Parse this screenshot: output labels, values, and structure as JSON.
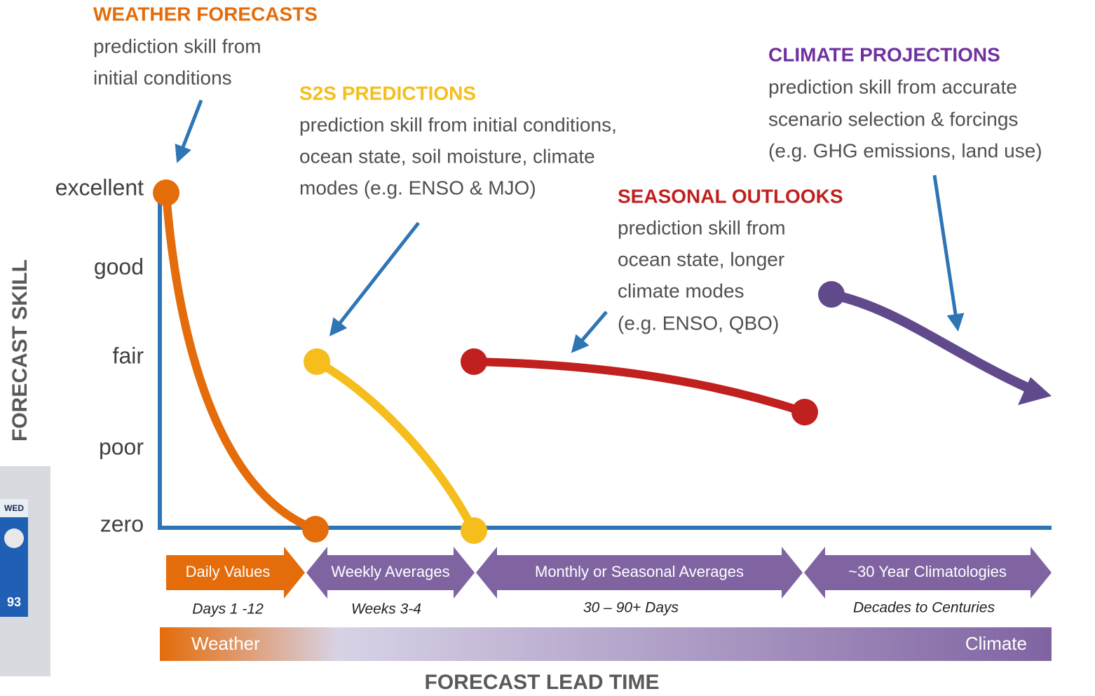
{
  "y_axis": {
    "title": "FORECAST SKILL",
    "levels": [
      "excellent",
      "good",
      "fair",
      "poor",
      "zero"
    ]
  },
  "x_axis": {
    "title": "FORECAST LEAD TIME"
  },
  "annotations": [
    {
      "title": "WEATHER FORECASTS",
      "lines": [
        "prediction skill from",
        "initial conditions"
      ]
    },
    {
      "title": "S2S PREDICTIONS",
      "lines": [
        "prediction skill from initial conditions,",
        "ocean state, soil moisture, climate",
        "modes (e.g. ENSO & MJO)"
      ]
    },
    {
      "title": "SEASONAL OUTLOOKS",
      "lines": [
        "prediction skill from",
        "ocean state, longer",
        "climate modes",
        "(e.g. ENSO, QBO)"
      ]
    },
    {
      "title": "CLIMATE PROJECTIONS",
      "lines": [
        "prediction skill from accurate",
        "scenario selection & forcings",
        "(e.g. GHG emissions, land use)"
      ]
    }
  ],
  "periods": [
    {
      "label": "Daily Values",
      "span": "Days 1 -12"
    },
    {
      "label": "Weekly Averages",
      "span": "Weeks 3-4"
    },
    {
      "label": "Monthly or Seasonal Averages",
      "span": "30 – 90+ Days"
    },
    {
      "label": "~30 Year Climatologies",
      "span": "Decades to Centuries"
    }
  ],
  "scale_bar": {
    "start": "Weather",
    "end": "Climate"
  },
  "thumbnail": {
    "day": "WED",
    "temperature": "93"
  }
}
